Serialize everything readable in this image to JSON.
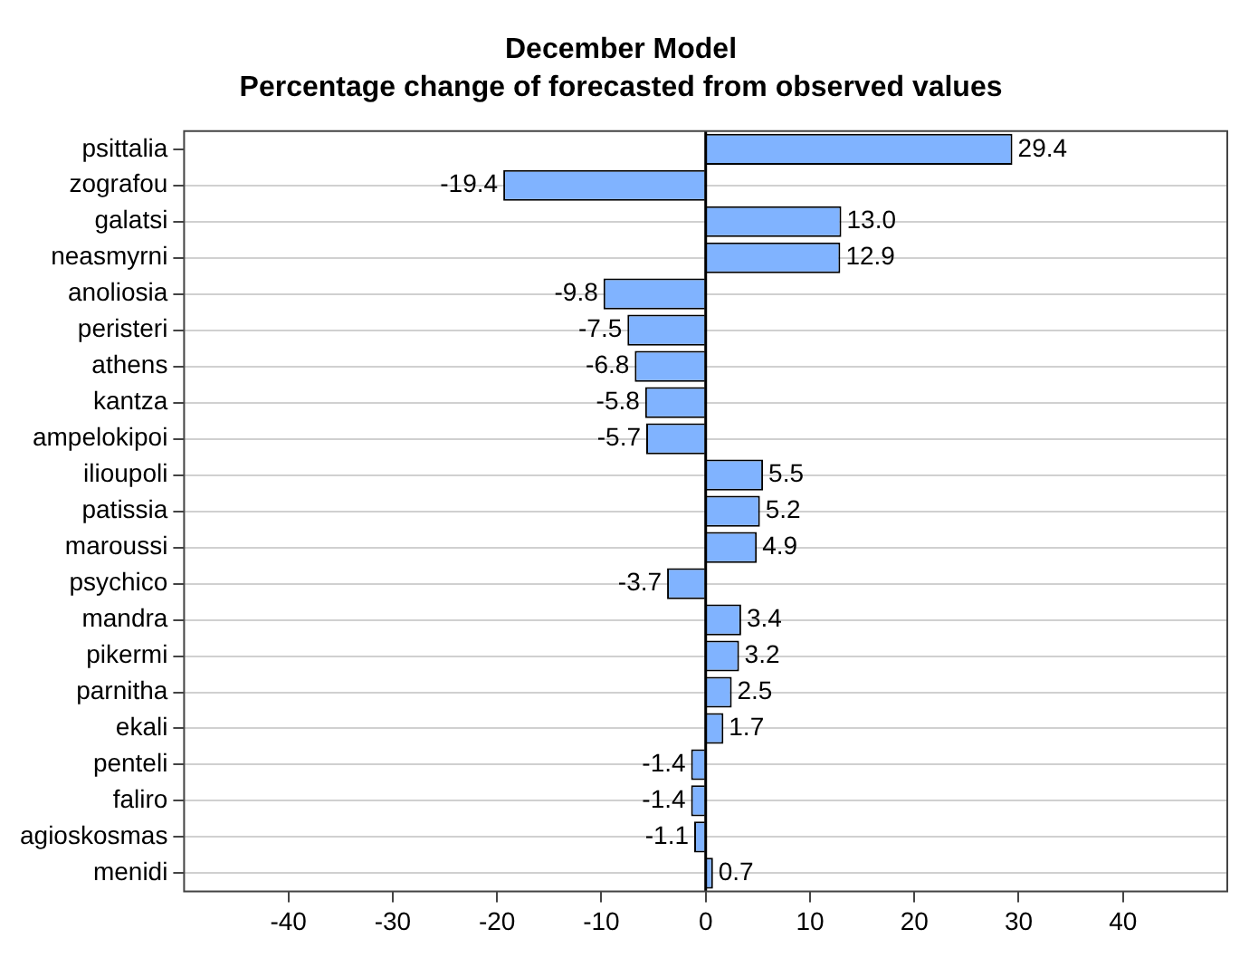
{
  "chart_data": {
    "type": "bar",
    "orientation": "horizontal",
    "title": "December Model",
    "subtitle": "Percentage change of forecasted from observed values",
    "categories": [
      "psittalia",
      "zografou",
      "galatsi",
      "neasmyrni",
      "anoliosia",
      "peristeri",
      "athens",
      "kantza",
      "ampelokipoi",
      "ilioupoli",
      "patissia",
      "maroussi",
      "psychico",
      "mandra",
      "pikermi",
      "parnitha",
      "ekali",
      "penteli",
      "faliro",
      "agioskosmas",
      "menidi"
    ],
    "values": [
      29.4,
      -19.4,
      13.0,
      12.9,
      -9.8,
      -7.5,
      -6.8,
      -5.8,
      -5.7,
      5.5,
      5.2,
      4.9,
      -3.7,
      3.4,
      3.2,
      2.5,
      1.7,
      -1.4,
      -1.4,
      -1.1,
      0.7
    ],
    "value_labels": [
      "29.4",
      "-19.4",
      "13.0",
      "12.9",
      "-9.8",
      "-7.5",
      "-6.8",
      "-5.8",
      "-5.7",
      "5.5",
      "5.2",
      "4.9",
      "-3.7",
      "3.4",
      "3.2",
      "2.5",
      "1.7",
      "-1.4",
      "-1.4",
      "-1.1",
      "0.7"
    ],
    "color": "#80b3ff",
    "xlim": [
      -50,
      50
    ],
    "xticks": [
      -40,
      -30,
      -20,
      -10,
      0,
      10,
      20,
      30,
      40
    ],
    "grid": "y",
    "legend": false,
    "ref_lines": [
      {
        "axis": "x",
        "value": 0,
        "color": "#000000"
      }
    ]
  }
}
